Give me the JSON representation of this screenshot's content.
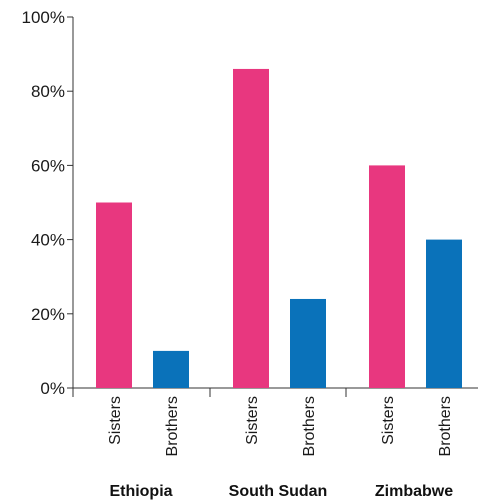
{
  "chart_data": {
    "type": "bar",
    "groups": [
      {
        "label": "Ethiopia",
        "categories": [
          "Sisters",
          "Brothers"
        ],
        "values": [
          50,
          10
        ]
      },
      {
        "label": "South Sudan",
        "categories": [
          "Sisters",
          "Brothers"
        ],
        "values": [
          86,
          24
        ]
      },
      {
        "label": "Zimbabwe",
        "categories": [
          "Sisters",
          "Brothers"
        ],
        "values": [
          60,
          40
        ]
      }
    ],
    "ylim": [
      0,
      100
    ],
    "yticks": [
      "0%",
      "20%",
      "40%",
      "60%",
      "80%",
      "100%"
    ],
    "grid": false,
    "colors": {
      "Sisters": "#e8377f",
      "Brothers": "#0a72ba"
    }
  }
}
